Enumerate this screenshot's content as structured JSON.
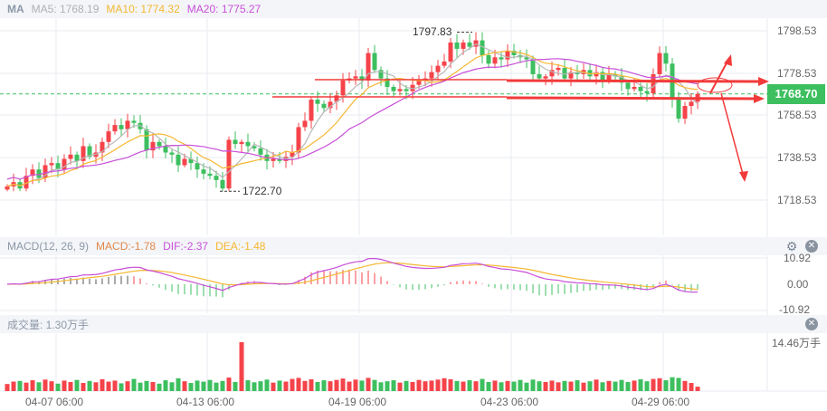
{
  "legend": {
    "ma_label": "MA",
    "ma5": "MA5: 1768.19",
    "ma10": "MA10: 1774.32",
    "ma20": "MA20: 1775.27",
    "macd_label": "MACD(12, 26, 9)",
    "macd": "MACD:-1.78",
    "dif": "DIF:-2.37",
    "dea": "DEA:-1.48",
    "volume": "成交量: 1.30万手"
  },
  "icons": {
    "settings": "gear-icon",
    "close": "close-icon"
  },
  "colors": {
    "up": "#f5434a",
    "down": "#3dbf5f",
    "ma5": "#b8b8b8",
    "ma10": "#f5b731",
    "ma20": "#c84fd8",
    "annotation": "#f23a3a",
    "current_price": "#3dbf5f"
  },
  "chart_data": [
    {
      "type": "candlestick",
      "title": "",
      "y_ticks": [
        "1798.53",
        "1778.53",
        "1758.53",
        "1738.53",
        "1718.53"
      ],
      "ylim": [
        1713,
        1803
      ],
      "x_ticks": [
        "04-07 06:00",
        "04-13 06:00",
        "04-19 06:00",
        "04-23 06:00",
        "04-29 06:00"
      ],
      "current_price": "1768.70",
      "high_label": "1797.83",
      "low_label": "1722.70",
      "closes": [
        1725,
        1727,
        1724,
        1730,
        1733,
        1729,
        1735,
        1736,
        1733,
        1738,
        1740,
        1737,
        1744,
        1739,
        1741,
        1746,
        1751,
        1754,
        1752,
        1756,
        1755,
        1752,
        1742,
        1746,
        1744,
        1741,
        1740,
        1735,
        1738,
        1736,
        1733,
        1731,
        1730,
        1728,
        1724,
        1747,
        1745,
        1746,
        1744,
        1743,
        1740,
        1737,
        1738,
        1737,
        1739,
        1741,
        1753,
        1756,
        1766,
        1764,
        1762,
        1765,
        1768,
        1775,
        1776,
        1777,
        1775,
        1788,
        1780,
        1776,
        1772,
        1770,
        1771,
        1770,
        1773,
        1775,
        1776,
        1779,
        1782,
        1784,
        1793,
        1790,
        1793,
        1791,
        1794,
        1787,
        1783,
        1786,
        1785,
        1789,
        1787,
        1786,
        1785,
        1778,
        1776,
        1777,
        1780,
        1781,
        1776,
        1779,
        1778,
        1780,
        1777,
        1779,
        1775,
        1778,
        1777,
        1774,
        1771,
        1772,
        1770,
        1769,
        1778,
        1788,
        1783,
        1766,
        1757,
        1763,
        1765,
        1768.7
      ],
      "series": [
        {
          "name": "MA5"
        },
        {
          "name": "MA10"
        },
        {
          "name": "MA20"
        }
      ],
      "grid": true
    },
    {
      "type": "macd",
      "y_ticks": [
        "10.92",
        "0.00",
        "-10.92"
      ],
      "ylim": [
        -10.92,
        10.92
      ]
    },
    {
      "type": "bar",
      "y_tick": "14.46万手",
      "ylim": [
        0,
        14.46
      ],
      "values": [
        2.1,
        2.8,
        3.0,
        2.5,
        3.2,
        2.6,
        3.4,
        2.9,
        2.2,
        3.1,
        2.7,
        3.3,
        2.4,
        3.0,
        2.6,
        3.5,
        2.8,
        3.1,
        2.3,
        2.9,
        3.6,
        2.5,
        3.0,
        2.7,
        2.2,
        3.2,
        2.6,
        3.8,
        2.9,
        2.4,
        3.1,
        2.8,
        3.3,
        2.5,
        3.0,
        4.0,
        2.7,
        14.46,
        3.2,
        2.6,
        2.9,
        3.4,
        2.5,
        3.1,
        2.8,
        3.6,
        3.9,
        3.0,
        3.5,
        2.7,
        3.2,
        2.9,
        3.3,
        3.7,
        2.8,
        3.4,
        3.1,
        3.9,
        3.3,
        2.6,
        2.9,
        3.2,
        2.5,
        3.0,
        2.7,
        3.3,
        2.9,
        3.1,
        3.4,
        3.8,
        3.5,
        3.0,
        2.8,
        3.2,
        2.9,
        3.6,
        2.7,
        3.1,
        2.6,
        3.0,
        2.8,
        3.3,
        2.5,
        3.4,
        2.9,
        2.7,
        3.1,
        2.6,
        3.0,
        2.8,
        3.2,
        2.5,
        2.9,
        3.4,
        2.6,
        3.0,
        2.8,
        3.3,
        2.7,
        3.1,
        3.5,
        2.9,
        3.6,
        3.8,
        3.2,
        4.1,
        3.9,
        3.0,
        2.4,
        1.3
      ]
    }
  ]
}
